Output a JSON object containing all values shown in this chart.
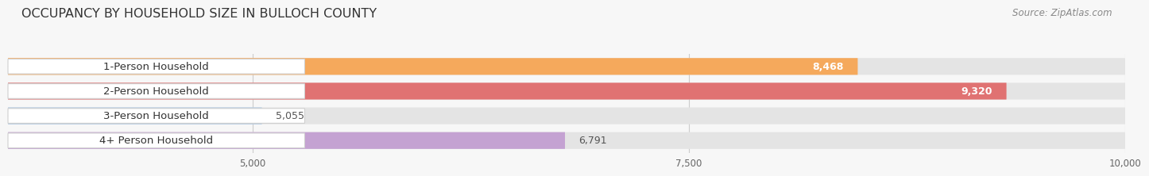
{
  "title": "OCCUPANCY BY HOUSEHOLD SIZE IN BULLOCH COUNTY",
  "source": "Source: ZipAtlas.com",
  "categories": [
    "1-Person Household",
    "2-Person Household",
    "3-Person Household",
    "4+ Person Household"
  ],
  "values": [
    8468,
    9320,
    5055,
    6791
  ],
  "bar_colors": [
    "#f5a95c",
    "#e07272",
    "#a8c5e2",
    "#c4a2d2"
  ],
  "label_colors": [
    "#ffffff",
    "#ffffff",
    "#777777",
    "#777777"
  ],
  "xlim": [
    3600,
    10000
  ],
  "xticks": [
    5000,
    7500,
    10000
  ],
  "background_color": "#f7f7f7",
  "bar_bg_color": "#e4e4e4",
  "title_fontsize": 11.5,
  "label_fontsize": 9.5,
  "value_fontsize": 9,
  "source_fontsize": 8.5
}
